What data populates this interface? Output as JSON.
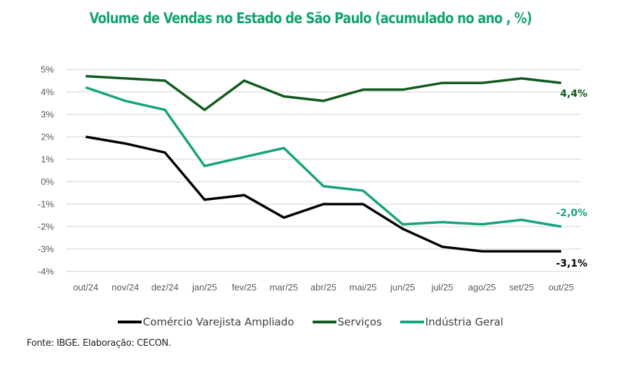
{
  "chart_data": {
    "type": "line",
    "title": "Volume de Vendas no Estado de São Paulo (acumulado no ano , %)",
    "xlabel": "",
    "ylabel": "",
    "categories": [
      "out/24",
      "nov/24",
      "dez/24",
      "jan/25",
      "fev/25",
      "mar/25",
      "abr/25",
      "mai/25",
      "jun/25",
      "jul/25",
      "ago/25",
      "set/25",
      "out/25"
    ],
    "ylim": [
      -4,
      5
    ],
    "yticks": [
      5,
      4,
      3,
      2,
      1,
      0,
      -1,
      -2,
      -3,
      -4
    ],
    "ytick_labels": [
      "5%",
      "4%",
      "3%",
      "2%",
      "1%",
      "0%",
      "-1%",
      "-2%",
      "-3%",
      "-4%"
    ],
    "grid": true,
    "legend_position": "bottom",
    "series": [
      {
        "name": "Comércio Varejista Ampliado",
        "color": "#000000",
        "values": [
          2.0,
          1.7,
          1.3,
          -0.8,
          -0.6,
          -1.6,
          -1.0,
          -1.0,
          -2.1,
          -2.9,
          -3.1,
          -3.1,
          -3.1
        ],
        "end_label": "-3,1%"
      },
      {
        "name": "Serviços",
        "color": "#0f5a1c",
        "values": [
          4.7,
          4.6,
          4.5,
          3.2,
          4.5,
          3.8,
          3.6,
          4.1,
          4.1,
          4.4,
          4.4,
          4.6,
          4.4
        ],
        "end_label": "4,4%"
      },
      {
        "name": "Indústria Geral",
        "color": "#16a37e",
        "values": [
          4.2,
          3.6,
          3.2,
          0.7,
          1.1,
          1.5,
          -0.2,
          -0.4,
          -1.9,
          -1.8,
          -1.9,
          -1.7,
          -2.0
        ],
        "end_label": "-2,0%"
      }
    ]
  },
  "colors": {
    "title": "#14a36e",
    "gridline": "#d9d9d9"
  },
  "source": "Fonte: IBGE. Elaboração: CECON."
}
